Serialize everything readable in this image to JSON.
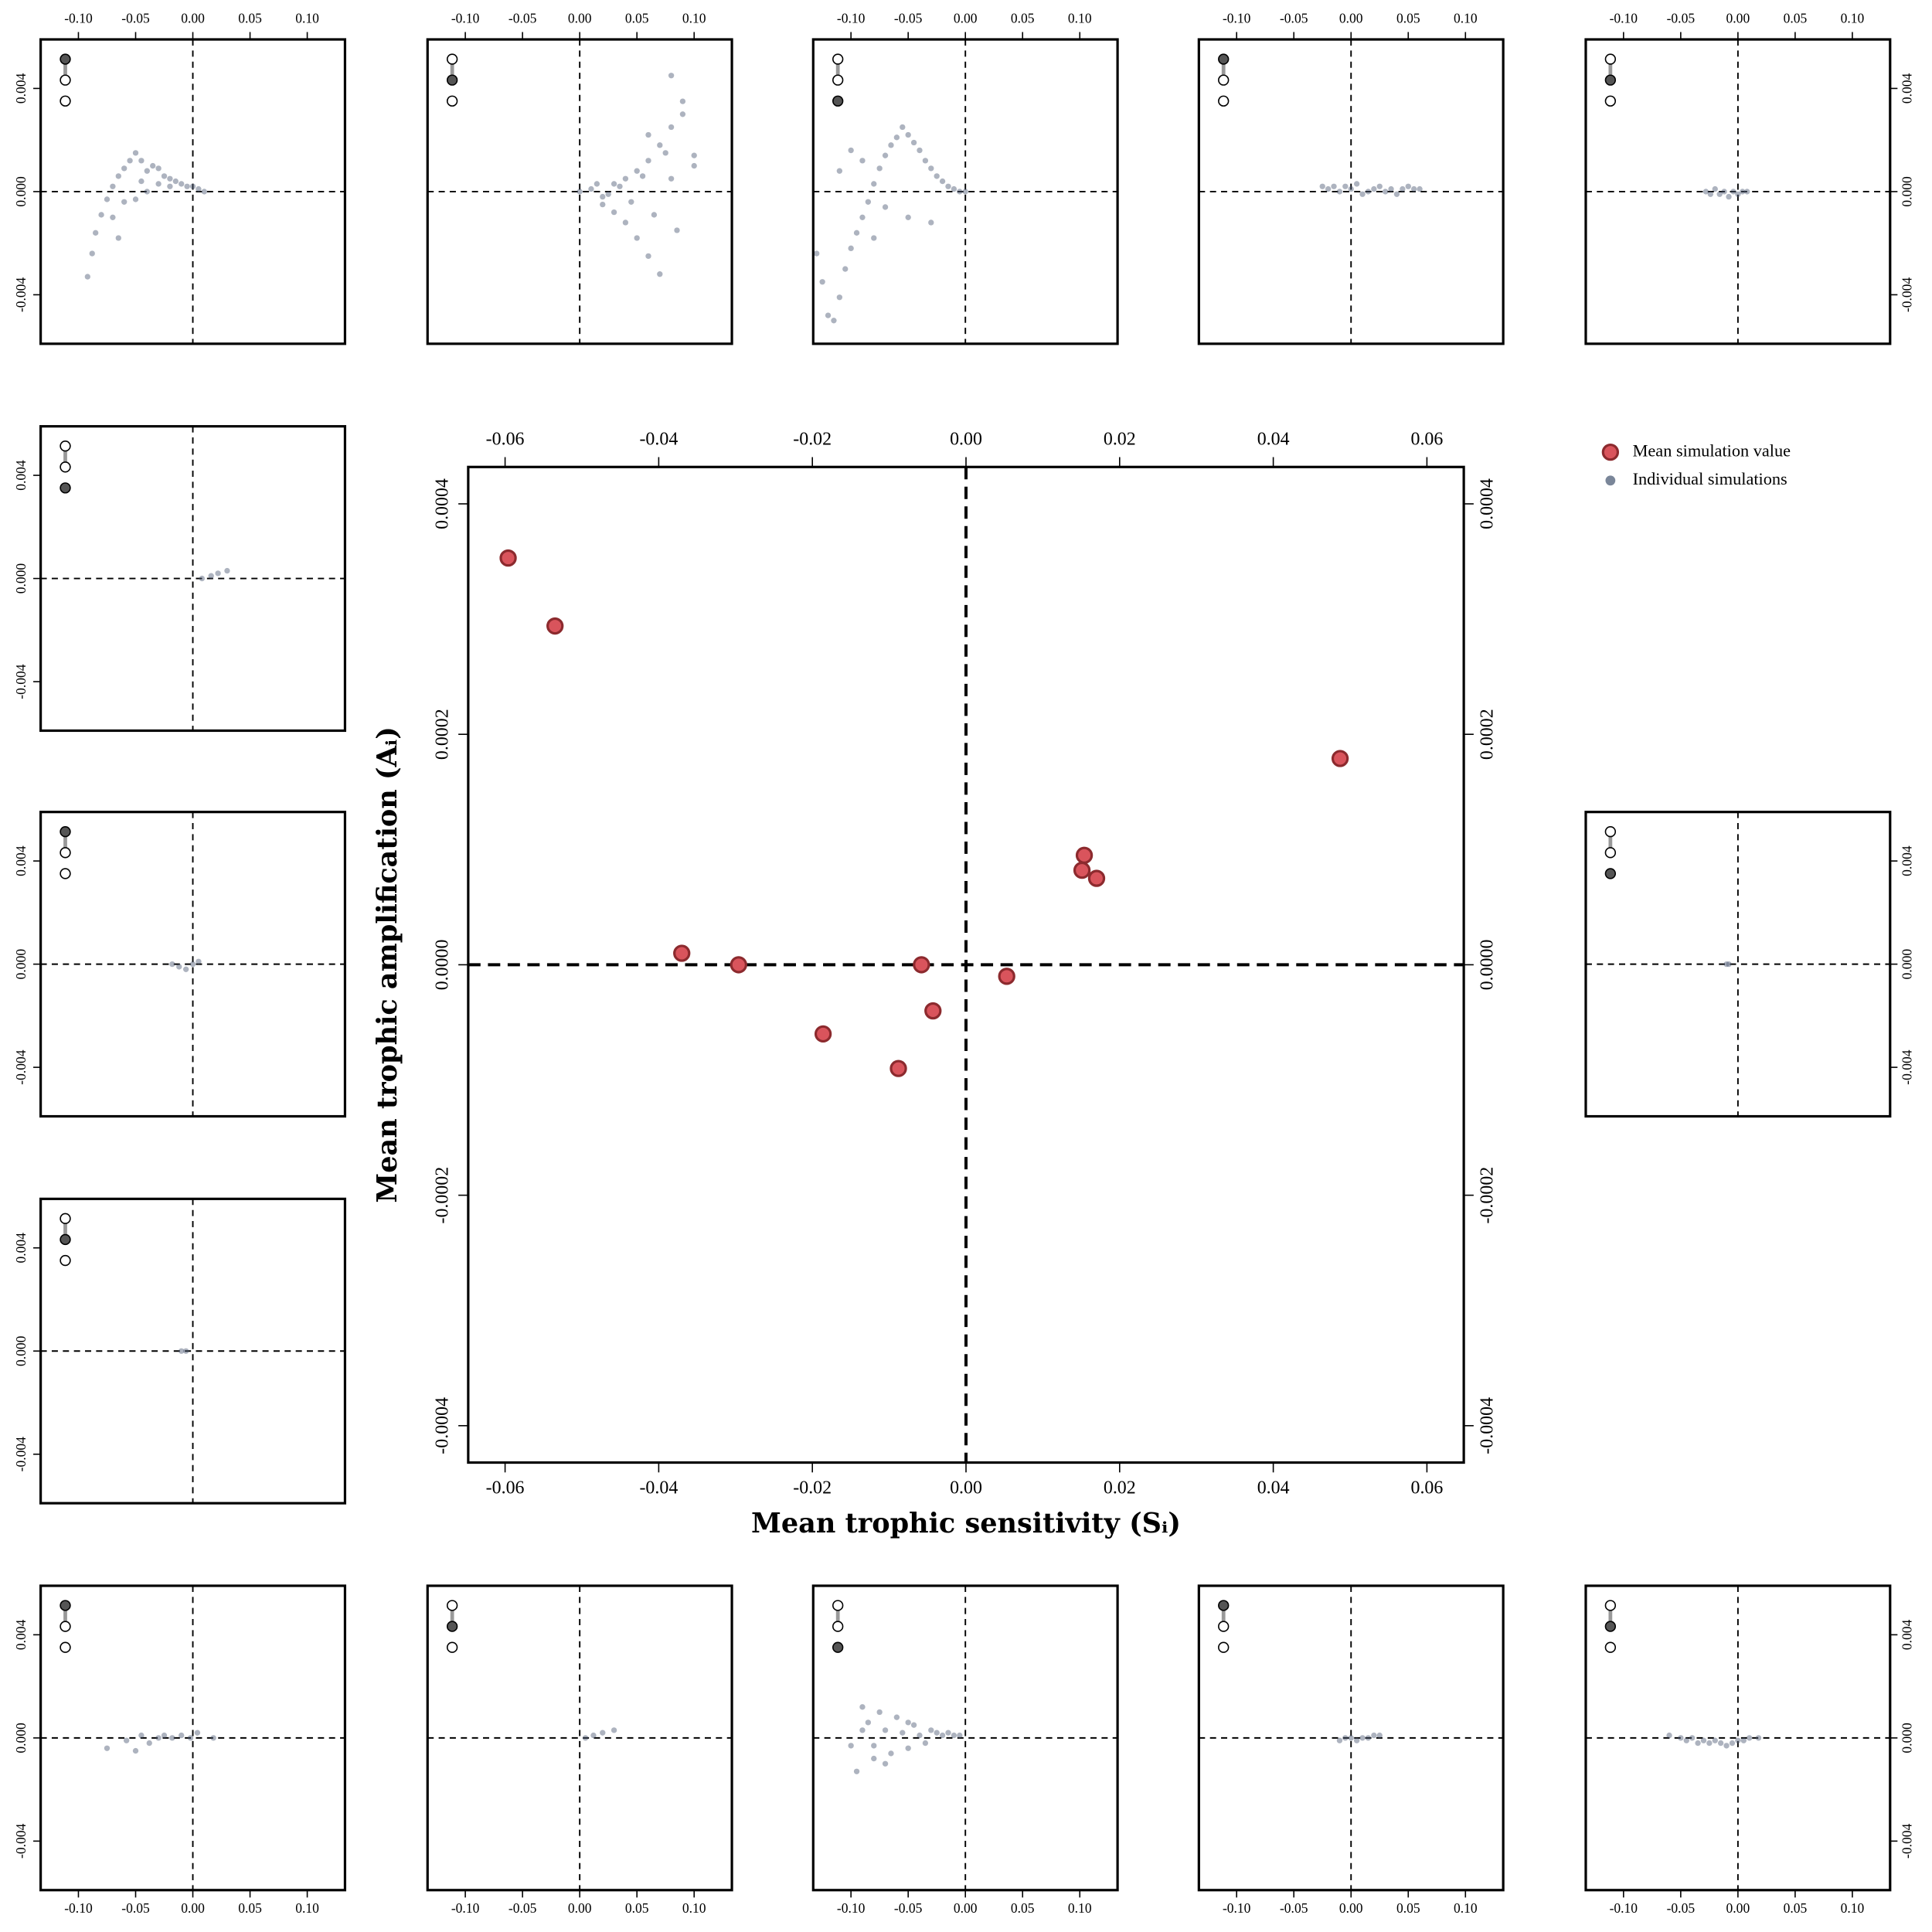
{
  "chart_data": [
    {
      "type": "scatter",
      "xlabel": "Mean trophic sensitivity (Sᵢ)",
      "ylabel": "Mean trophic amplification (Aᵢ)",
      "xlim": [
        -0.0648,
        0.0648
      ],
      "ylim": [
        -0.000432,
        0.000432
      ],
      "xticks": [
        -0.06,
        -0.04,
        -0.02,
        {
          "value": 0,
          "label": "0.00"
        },
        0.02,
        0.04,
        0.06
      ],
      "yticks": [
        -0.0004,
        -0.0002,
        {
          "value": 0,
          "label": "0.0000"
        },
        0.0002,
        0.0004
      ],
      "legend": {
        "position": "top-right",
        "entries": [
          {
            "name": "Mean simulation value",
            "color": "#d9545c"
          },
          {
            "name": "Individual simulations",
            "color": "#7a8699"
          }
        ]
      },
      "series": [
        {
          "color": "#d9545c",
          "x": [
            -0.0596,
            -0.0535,
            -0.037,
            -0.0296,
            -0.0186,
            -0.0088,
            -0.0058,
            -0.0043,
            0.0053,
            0.0154,
            0.0151,
            0.017,
            0.0487
          ],
          "values": [
            0.000353,
            0.000294,
            1e-05,
            0,
            -6e-05,
            -9e-05,
            0,
            -4e-05,
            -1e-05,
            9.5e-05,
            8.2e-05,
            7.5e-05,
            0.000179
          ]
        }
      ]
    },
    {
      "type": "scatter",
      "xlim": [
        -0.133,
        0.133
      ],
      "ylim": [
        -0.0059,
        0.0059
      ],
      "xticks": [
        {
          "value": -0.1,
          "label": "-0.10"
        },
        {
          "value": -0.05,
          "label": "-0.05"
        },
        {
          "value": 0,
          "label": "0.00"
        },
        {
          "value": 0.05,
          "label": "0.05"
        },
        {
          "value": 0.1,
          "label": "0.10"
        }
      ],
      "yticks": [
        -0.004,
        {
          "value": 0,
          "label": "0.000"
        },
        0.004
      ],
      "series": [
        {
          "color": "#4a5670",
          "x": [
            -0.092,
            -0.088,
            -0.085,
            -0.08,
            -0.075,
            -0.07,
            -0.065,
            -0.06,
            -0.055,
            -0.05,
            -0.045,
            -0.04,
            -0.035,
            -0.03,
            -0.025,
            -0.02,
            -0.015,
            -0.01,
            -0.005,
            0,
            0.005,
            0.01,
            -0.06,
            -0.04,
            -0.02,
            -0.07,
            -0.05,
            -0.03,
            -0.065,
            -0.045
          ],
          "values": [
            -0.0033,
            -0.0024,
            -0.0016,
            -0.0009,
            -0.0003,
            0.0002,
            0.0006,
            0.0009,
            0.0012,
            0.0015,
            0.0004,
            0.0008,
            0.001,
            0.0009,
            0.0006,
            0.0005,
            0.0004,
            0.0003,
            0.0002,
            0.0002,
            0.0001,
            0,
            -0.0004,
            0,
            0.0002,
            -0.001,
            -0.0003,
            0.0003,
            -0.0018,
            0.0012
          ]
        }
      ]
    },
    {
      "type": "scatter",
      "xlim": [
        -0.133,
        0.133
      ],
      "ylim": [
        -0.0059,
        0.0059
      ],
      "xticks": [
        {
          "value": -0.1,
          "label": "-0.10"
        },
        {
          "value": -0.05,
          "label": "-0.05"
        },
        {
          "value": 0,
          "label": "0.00"
        },
        {
          "value": 0.05,
          "label": "0.05"
        },
        {
          "value": 0.1,
          "label": "0.10"
        }
      ],
      "series": [
        {
          "color": "#4a5670",
          "x": [
            0,
            0.01,
            0.02,
            0.03,
            0.04,
            0.05,
            0.06,
            0.07,
            0.08,
            0.09,
            0.1,
            0.02,
            0.03,
            0.04,
            0.05,
            0.06,
            0.07,
            0.08,
            0.09,
            0.035,
            0.045,
            0.055,
            0.065,
            0.075,
            0.085,
            0.015,
            0.025,
            0.06,
            0.08,
            0.1
          ],
          "values": [
            0,
            0.0001,
            -0.0002,
            0.0003,
            0.0005,
            0.0008,
            0.0012,
            0.0018,
            0.0025,
            0.0035,
            0.001,
            -0.0005,
            -0.0008,
            -0.0012,
            -0.0018,
            -0.0025,
            -0.0032,
            0.0045,
            0.003,
            0.0002,
            -0.0004,
            0.0006,
            -0.0009,
            0.0015,
            -0.0015,
            0.0003,
            -0.0001,
            0.0022,
            0.0005,
            0.0014
          ]
        }
      ]
    },
    {
      "type": "scatter",
      "xlim": [
        -0.133,
        0.133
      ],
      "ylim": [
        -0.0059,
        0.0059
      ],
      "xticks": [
        {
          "value": -0.1,
          "label": "-0.10"
        },
        {
          "value": -0.05,
          "label": "-0.05"
        },
        {
          "value": 0,
          "label": "0.00"
        },
        {
          "value": 0.05,
          "label": "0.05"
        },
        {
          "value": 0.1,
          "label": "0.10"
        }
      ],
      "series": [
        {
          "color": "#4a5670",
          "x": [
            -0.13,
            -0.125,
            -0.12,
            -0.115,
            -0.11,
            -0.105,
            -0.1,
            -0.095,
            -0.09,
            -0.085,
            -0.08,
            -0.075,
            -0.07,
            -0.065,
            -0.06,
            -0.055,
            -0.05,
            -0.045,
            -0.04,
            -0.035,
            -0.03,
            -0.025,
            -0.02,
            -0.015,
            -0.01,
            -0.005,
            0,
            -0.11,
            -0.09,
            -0.07,
            -0.05,
            -0.03,
            -0.1,
            -0.08
          ],
          "values": [
            -0.0024,
            -0.0035,
            -0.0048,
            -0.005,
            -0.0041,
            -0.003,
            -0.0022,
            -0.0016,
            -0.001,
            -0.0004,
            0.0003,
            0.0009,
            0.0014,
            0.0018,
            0.0021,
            0.0025,
            0.0022,
            0.0019,
            0.0016,
            0.0012,
            0.0009,
            0.0006,
            0.0004,
            0.0002,
            0.0001,
            0,
            0,
            0.0008,
            0.0012,
            -0.0006,
            -0.001,
            -0.0012,
            0.0016,
            -0.0018
          ]
        }
      ]
    },
    {
      "type": "scatter",
      "xlim": [
        -0.133,
        0.133
      ],
      "ylim": [
        -0.0059,
        0.0059
      ],
      "xticks": [
        {
          "value": -0.1,
          "label": "-0.10"
        },
        {
          "value": -0.05,
          "label": "-0.05"
        },
        {
          "value": 0,
          "label": "0.00"
        },
        {
          "value": 0.05,
          "label": "0.05"
        },
        {
          "value": 0.1,
          "label": "0.10"
        }
      ],
      "series": [
        {
          "color": "#4a5670",
          "x": [
            -0.025,
            -0.02,
            -0.015,
            -0.01,
            -0.005,
            0,
            0.005,
            0.01,
            0.015,
            0.02,
            0.025,
            0.03,
            0.035,
            0.04,
            0.045,
            0.05,
            0.055,
            0.06
          ],
          "values": [
            0.0002,
            0.0001,
            0.0002,
            0,
            0.0002,
            0.0001,
            0.0003,
            -0.0001,
            0,
            0.0001,
            0.0002,
            0,
            0.0001,
            -0.0001,
            0.0001,
            0.0002,
            0.0001,
            0.0001
          ]
        }
      ]
    },
    {
      "type": "scatter",
      "xlim": [
        -0.133,
        0.133
      ],
      "ylim": [
        -0.0059,
        0.0059
      ],
      "xticks": [
        {
          "value": -0.1,
          "label": "-0.10"
        },
        {
          "value": -0.05,
          "label": "-0.05"
        },
        {
          "value": 0,
          "label": "0.00"
        },
        {
          "value": 0.05,
          "label": "0.05"
        },
        {
          "value": 0.1,
          "label": "0.10"
        }
      ],
      "yticks": [
        -0.004,
        {
          "value": 0,
          "label": "0.000"
        },
        0.004
      ],
      "series": [
        {
          "color": "#4a5670",
          "x": [
            -0.028,
            -0.024,
            -0.02,
            -0.016,
            -0.012,
            -0.008,
            -0.004,
            0,
            0.004,
            0.008
          ],
          "values": [
            0,
            -0.0001,
            0.0001,
            -0.0001,
            0,
            -0.0002,
            0,
            -0.0001,
            0,
            0
          ]
        }
      ]
    },
    {
      "type": "scatter",
      "xlim": [
        -0.133,
        0.133
      ],
      "ylim": [
        -0.0059,
        0.0059
      ],
      "yticks": [
        -0.004,
        {
          "value": 0,
          "label": "0.000"
        },
        0.004
      ],
      "series": [
        {
          "color": "#4a5670",
          "x": [
            0.008,
            0.016,
            0.022,
            0.03
          ],
          "values": [
            0,
            0.0001,
            0.0002,
            0.0003
          ]
        }
      ]
    },
    {
      "type": "scatter",
      "xlim": [
        -0.133,
        0.133
      ],
      "ylim": [
        -0.0059,
        0.0059
      ],
      "yticks": [
        -0.004,
        {
          "value": 0,
          "label": "0.000"
        },
        0.004
      ],
      "series": [
        {
          "color": "#4a5670",
          "x": [
            -0.018,
            -0.012,
            -0.006,
            0,
            0.005
          ],
          "values": [
            0,
            -0.0001,
            -0.0002,
            0,
            0.0001
          ]
        }
      ]
    },
    {
      "type": "scatter",
      "xlim": [
        -0.133,
        0.133
      ],
      "ylim": [
        -0.0059,
        0.0059
      ],
      "yticks": [
        -0.004,
        {
          "value": 0,
          "label": "0.000"
        },
        0.004
      ],
      "series": [
        {
          "color": "#4a5670",
          "x": [
            -0.01,
            -0.006
          ],
          "values": [
            0,
            0
          ]
        }
      ]
    },
    {
      "type": "scatter",
      "xlim": [
        -0.133,
        0.133
      ],
      "ylim": [
        -0.0059,
        0.0059
      ],
      "yticks": [
        -0.004,
        {
          "value": 0,
          "label": "0.000"
        },
        0.004
      ],
      "series": [
        {
          "color": "#4a5670",
          "x": [
            -0.01,
            -0.008
          ],
          "values": [
            0,
            0
          ]
        }
      ]
    },
    {
      "type": "scatter",
      "xlim": [
        -0.133,
        0.133
      ],
      "ylim": [
        -0.0059,
        0.0059
      ],
      "xticks": [
        {
          "value": -0.1,
          "label": "-0.10"
        },
        {
          "value": -0.05,
          "label": "-0.05"
        },
        {
          "value": 0,
          "label": "0.00"
        },
        {
          "value": 0.05,
          "label": "0.05"
        },
        {
          "value": 0.1,
          "label": "0.10"
        }
      ],
      "yticks": [
        -0.004,
        {
          "value": 0,
          "label": "0.000"
        },
        0.004
      ],
      "series": [
        {
          "color": "#4a5670",
          "x": [
            -0.075,
            -0.058,
            -0.05,
            -0.045,
            -0.038,
            -0.03,
            -0.025,
            -0.018,
            -0.01,
            -0.002,
            0.004,
            0.018
          ],
          "values": [
            -0.0004,
            -0.0001,
            -0.0005,
            0.0001,
            -0.0002,
            0,
            0.0001,
            0,
            0.0001,
            0,
            0.0002,
            0
          ]
        }
      ]
    },
    {
      "type": "scatter",
      "xlim": [
        -0.133,
        0.133
      ],
      "ylim": [
        -0.0059,
        0.0059
      ],
      "xticks": [
        {
          "value": -0.1,
          "label": "-0.10"
        },
        {
          "value": -0.05,
          "label": "-0.05"
        },
        {
          "value": 0,
          "label": "0.00"
        },
        {
          "value": 0.05,
          "label": "0.05"
        },
        {
          "value": 0.1,
          "label": "0.10"
        }
      ],
      "series": [
        {
          "color": "#4a5670",
          "x": [
            0.005,
            0.012,
            0.02,
            0.03
          ],
          "values": [
            0,
            0.0001,
            0.0002,
            0.0003
          ]
        }
      ]
    },
    {
      "type": "scatter",
      "xlim": [
        -0.133,
        0.133
      ],
      "ylim": [
        -0.0059,
        0.0059
      ],
      "xticks": [
        {
          "value": -0.1,
          "label": "-0.10"
        },
        {
          "value": -0.05,
          "label": "-0.05"
        },
        {
          "value": 0,
          "label": "0.00"
        },
        {
          "value": 0.05,
          "label": "0.05"
        },
        {
          "value": 0.1,
          "label": "0.10"
        }
      ],
      "series": [
        {
          "color": "#4a5670",
          "x": [
            -0.1,
            -0.095,
            -0.09,
            -0.085,
            -0.08,
            -0.075,
            -0.07,
            -0.065,
            -0.06,
            -0.055,
            -0.05,
            -0.045,
            -0.04,
            -0.035,
            -0.03,
            -0.025,
            -0.02,
            -0.015,
            -0.01,
            -0.005,
            -0.09,
            -0.07,
            -0.05,
            -0.08
          ],
          "values": [
            -0.0003,
            -0.0013,
            0.0012,
            0.0006,
            -0.0008,
            0.001,
            0.0003,
            -0.0006,
            0.0008,
            0.0002,
            -0.0004,
            0.0005,
            0.0001,
            -0.0002,
            0.0003,
            0.0002,
            0.0001,
            0.0002,
            0.0001,
            0.0001,
            0.0003,
            -0.001,
            0.0006,
            -0.0003
          ]
        }
      ]
    },
    {
      "type": "scatter",
      "xlim": [
        -0.133,
        0.133
      ],
      "ylim": [
        -0.0059,
        0.0059
      ],
      "xticks": [
        {
          "value": -0.1,
          "label": "-0.10"
        },
        {
          "value": -0.05,
          "label": "-0.05"
        },
        {
          "value": 0,
          "label": "0.00"
        },
        {
          "value": 0.05,
          "label": "0.05"
        },
        {
          "value": 0.1,
          "label": "0.10"
        }
      ],
      "series": [
        {
          "color": "#4a5670",
          "x": [
            -0.01,
            -0.005,
            0,
            0.005,
            0.01,
            0.015,
            0.02,
            0.025
          ],
          "values": [
            -0.0001,
            0,
            0,
            -0.0001,
            0,
            0,
            0.0001,
            0.0001
          ]
        }
      ]
    },
    {
      "type": "scatter",
      "xlim": [
        -0.133,
        0.133
      ],
      "ylim": [
        -0.0059,
        0.0059
      ],
      "xticks": [
        {
          "value": -0.1,
          "label": "-0.10"
        },
        {
          "value": -0.05,
          "label": "-0.05"
        },
        {
          "value": 0,
          "label": "0.00"
        },
        {
          "value": 0.05,
          "label": "0.05"
        },
        {
          "value": 0.1,
          "label": "0.10"
        }
      ],
      "yticks": [
        -0.004,
        {
          "value": 0,
          "label": "0.000"
        },
        0.004
      ],
      "series": [
        {
          "color": "#4a5670",
          "x": [
            -0.06,
            -0.05,
            -0.045,
            -0.04,
            -0.035,
            -0.03,
            -0.025,
            -0.02,
            -0.015,
            -0.01,
            -0.005,
            0,
            0.005,
            0.01,
            0.018
          ],
          "values": [
            0.0001,
            0,
            -0.0001,
            0,
            -0.0002,
            -0.0001,
            -0.0002,
            -0.0001,
            -0.0002,
            -0.0003,
            -0.0002,
            -0.0001,
            -0.0001,
            0,
            0
          ]
        }
      ]
    }
  ]
}
